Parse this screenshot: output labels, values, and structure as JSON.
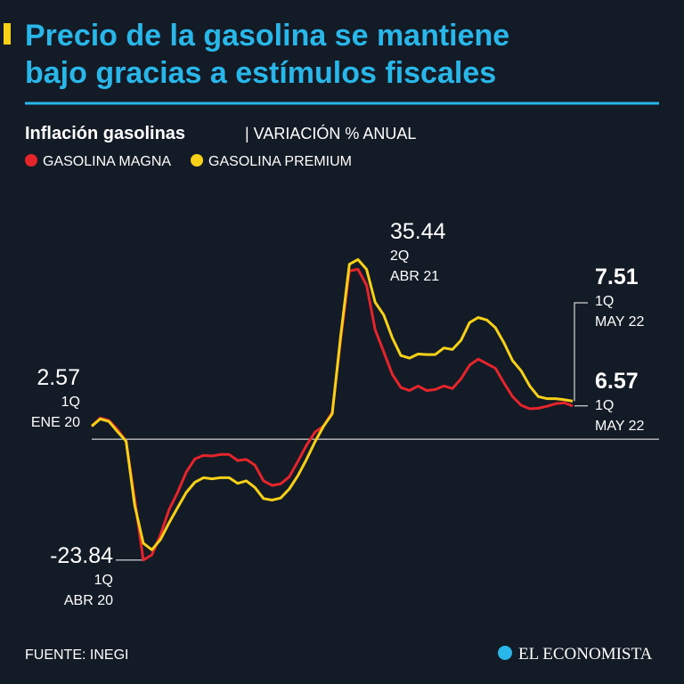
{
  "chart_data": {
    "type": "line",
    "title_lines": [
      "Precio de la gasolina se mantiene",
      "bajo gracias a estímulos fiscales"
    ],
    "subtitle": "Inflación gasolinas",
    "unit_label": "| VARIACIÓN % ANUAL",
    "categories": [
      "ENE 20",
      null,
      null,
      null,
      null,
      null,
      "ABR 20",
      null,
      null,
      null,
      null,
      null,
      null,
      null,
      null,
      null,
      null,
      null,
      null,
      null,
      null,
      null,
      null,
      null,
      null,
      null,
      null,
      null,
      null,
      null,
      null,
      "ABR 21",
      null,
      null,
      null,
      null,
      null,
      null,
      null,
      null,
      null,
      null,
      null,
      null,
      null,
      null,
      null,
      null,
      null,
      null,
      null,
      null,
      null,
      null,
      null,
      null,
      "MAY 22"
    ],
    "series": [
      {
        "name": "GASOLINA MAGNA",
        "color": "#e5242b",
        "values": [
          2.57,
          4.2,
          3.7,
          1.9,
          -0.4,
          -11.8,
          -23.84,
          -22.8,
          -18.9,
          -13.9,
          -10.5,
          -6.5,
          -3.9,
          -3.2,
          -3.3,
          -3.0,
          -3.0,
          -4.2,
          -4.0,
          -5.1,
          -8.2,
          -9.1,
          -8.8,
          -7.4,
          -4.4,
          -1.2,
          1.4,
          2.6,
          5.3,
          19.8,
          33.2,
          33.5,
          30.4,
          21.6,
          17.2,
          12.8,
          10.2,
          9.6,
          10.5,
          9.6,
          9.8,
          10.5,
          10.0,
          11.9,
          14.6,
          15.8,
          14.9,
          14.0,
          11.1,
          8.4,
          6.7,
          6.0,
          6.1,
          6.5,
          7.0,
          7.2,
          6.57
        ]
      },
      {
        "name": "GASOLINA PREMIUM",
        "color": "#f7d117",
        "values": [
          2.57,
          4.0,
          3.5,
          1.5,
          -0.4,
          -13,
          -20.5,
          -21.8,
          -19.8,
          -16.5,
          -13.5,
          -10.5,
          -8.5,
          -7.6,
          -7.8,
          -7.6,
          -7.6,
          -8.7,
          -8.2,
          -9.5,
          -11.7,
          -12.0,
          -11.6,
          -9.8,
          -7.2,
          -4.0,
          -0.5,
          2.6,
          5.0,
          20.5,
          34.5,
          35.44,
          33.5,
          27.0,
          24.5,
          20.0,
          16.5,
          16.0,
          16.8,
          16.7,
          16.7,
          18.0,
          17.7,
          19.5,
          23.0,
          24.0,
          23.5,
          22.0,
          19.0,
          15.5,
          13.5,
          10.5,
          8.4,
          8.0,
          8.0,
          7.8,
          7.51
        ]
      }
    ],
    "ylim": [
      -30,
      42
    ],
    "annotations": [
      {
        "number": "2.57",
        "period": "1Q"
      },
      {
        "number": "-23.84",
        "period": "1Q"
      },
      {
        "number": "35.44",
        "period": "2Q"
      },
      {
        "number": "7.51",
        "period": "1Q"
      },
      {
        "number": "6.57",
        "period": "1Q"
      }
    ],
    "source": "FUENTE: INEGI",
    "brand": "EL ECONOMISTA"
  }
}
